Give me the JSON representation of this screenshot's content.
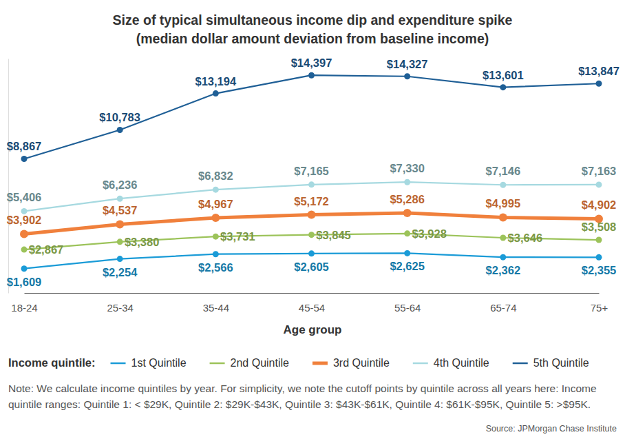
{
  "chart_data": {
    "type": "line",
    "title": "Size of typical simultaneous income dip and expenditure spike",
    "subtitle": "(median dollar amount deviation from baseline income)",
    "x_label": "Age group",
    "categories": [
      "18-24",
      "25-34",
      "35-44",
      "45-54",
      "55-64",
      "65-74",
      "75+"
    ],
    "legend_title": "Income quintile:",
    "series": [
      {
        "name": "1st Quintile",
        "color": "#1a9bd7",
        "values": [
          1609,
          2254,
          2566,
          2605,
          2625,
          2362,
          2355
        ],
        "value_labels": [
          "$1,609",
          "$2,254",
          "$2,566",
          "$2,605",
          "$2,625",
          "$2,362",
          "$2,355"
        ]
      },
      {
        "name": "2nd Quintile",
        "color": "#9cc35a",
        "values": [
          2867,
          3380,
          3731,
          3845,
          3928,
          3646,
          3508
        ],
        "value_labels": [
          "$2,867",
          "$3,380",
          "$3,731",
          "$3,845",
          "$3,928",
          "$3,646",
          "$3,508"
        ]
      },
      {
        "name": "3rd Quintile",
        "color": "#f0803c",
        "values": [
          3902,
          4537,
          4967,
          5172,
          5286,
          4995,
          4902
        ],
        "value_labels": [
          "$3,902",
          "$4,537",
          "$4,967",
          "$5,172",
          "$5,286",
          "$4,995",
          "$4,902"
        ]
      },
      {
        "name": "4th Quintile",
        "color": "#a6d9e0",
        "values": [
          5406,
          6236,
          6832,
          7165,
          7330,
          7146,
          7163
        ],
        "value_labels": [
          "$5,406",
          "$6,236",
          "$6,832",
          "$7,165",
          "$7,330",
          "$7,146",
          "$7,163"
        ]
      },
      {
        "name": "5th Quintile",
        "color": "#1f5f96",
        "values": [
          8867,
          10783,
          13194,
          14397,
          14327,
          13601,
          13847
        ],
        "value_labels": [
          "$8,867",
          "$10,783",
          "$13,194",
          "$14,397",
          "$14,327",
          "$13,601",
          "$13,847"
        ]
      }
    ],
    "ylim": [
      0,
      15500
    ],
    "grid": false,
    "legend": "bottom",
    "data_labels": true,
    "tick_labels": "x",
    "marker": "circle",
    "note": "Note: We calculate income quintiles by year. For simplicity, we note the cutoff points by quintile across all years here: Income quintile ranges: Quintile 1: < $29K, Quintile 2: $29K-$43K, Quintile 3: $43K-$61K, Quintile 4: $61K-$95K, Quintile 5: >$95K.",
    "source": "Source: JPMorgan Chase Institute"
  }
}
